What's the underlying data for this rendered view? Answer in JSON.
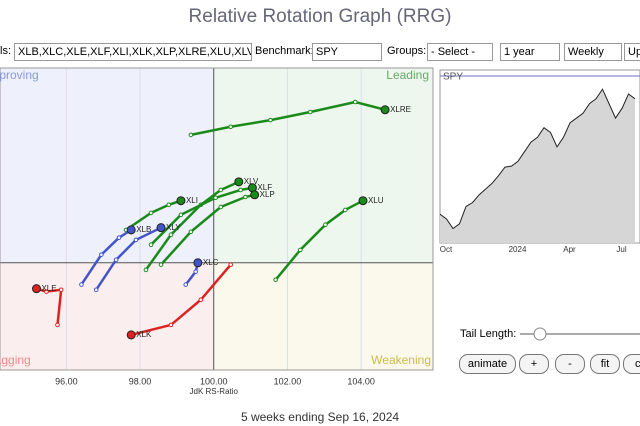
{
  "header": {
    "title": "Relative Rotation Graph (RRG)"
  },
  "controls": {
    "symbols_label": "ls:",
    "symbols": "XLB,XLC,XLE,XLF,XLI,XLK,XLP,XLRE,XLU,XLV,XL",
    "benchmark_label": "Benchmark:",
    "benchmark": "SPY",
    "groups_label": "Groups:",
    "groups": "- Select -",
    "period": "1 year",
    "interval": "Weekly",
    "update": "Up"
  },
  "rrg": {
    "x_label": "JdK RS-Ratio",
    "xlim": [
      94.2,
      105.95
    ],
    "ylim": [
      97.1,
      105.27
    ],
    "xticks": [
      {
        "value": 96,
        "label": "96.00"
      },
      {
        "value": 98,
        "label": "98.00"
      },
      {
        "value": 100,
        "label": "100.00"
      },
      {
        "value": 102,
        "label": "102.00"
      },
      {
        "value": 104,
        "label": "104.00"
      }
    ],
    "center": 100,
    "quadrants": {
      "improving": "Improving",
      "leading": "Leading",
      "weakening": "Weakening",
      "lagging": "Lagging"
    },
    "tails": [
      {
        "name": "XLRE",
        "color": "#1a8a1a",
        "x": [
          99.38,
          100.46,
          101.54,
          102.62,
          103.84,
          104.65
        ],
        "y": [
          103.46,
          103.68,
          103.86,
          104.08,
          104.35,
          104.14
        ]
      },
      {
        "name": "XLU",
        "color": "#1a8a1a",
        "x": [
          101.68,
          102.35,
          103.03,
          103.57,
          104.05
        ],
        "y": [
          99.54,
          100.35,
          101.03,
          101.43,
          101.68
        ]
      },
      {
        "name": "XLV",
        "color": "#1a8a1a",
        "x": [
          98.16,
          98.84,
          99.65,
          100.19,
          100.68
        ],
        "y": [
          99.81,
          100.76,
          101.57,
          101.97,
          102.19
        ]
      },
      {
        "name": "XLF",
        "color": "#1a8a1a",
        "x": [
          98.3,
          99.11,
          100.05,
          100.73,
          101.05
        ],
        "y": [
          100.49,
          101.3,
          101.76,
          101.97,
          102.03
        ]
      },
      {
        "name": "XLP",
        "color": "#1a8a1a",
        "x": [
          98.57,
          99.38,
          100.19,
          100.86,
          101.11
        ],
        "y": [
          99.95,
          100.84,
          101.51,
          101.78,
          101.84
        ]
      },
      {
        "name": "XLI",
        "color": "#1a8a1a",
        "x": [
          97.62,
          98.3,
          98.78,
          99.11
        ],
        "y": [
          100.89,
          101.35,
          101.57,
          101.68
        ]
      },
      {
        "name": "XLB",
        "color": "#4455cc",
        "x": [
          96.41,
          96.95,
          97.43,
          97.76
        ],
        "y": [
          99.41,
          100.22,
          100.68,
          100.89
        ]
      },
      {
        "name": "XLY",
        "color": "#4455cc",
        "x": [
          96.81,
          97.35,
          97.89,
          98.57
        ],
        "y": [
          99.27,
          100.08,
          100.62,
          100.95
        ]
      },
      {
        "name": "XLC",
        "color": "#4455cc",
        "x": [
          99.24,
          99.51,
          99.57
        ],
        "y": [
          99.41,
          99.76,
          100
        ]
      },
      {
        "name": "XLE",
        "color": "#dd2222",
        "x": [
          95.76,
          95.86,
          95.46,
          95.19
        ],
        "y": [
          98.32,
          99.27,
          99.22,
          99.3
        ]
      },
      {
        "name": "XLK",
        "color": "#dd2222",
        "x": [
          100.46,
          99.65,
          98.84,
          97.76
        ],
        "y": [
          99.95,
          99.0,
          98.32,
          98.05
        ]
      }
    ]
  },
  "benchmark_chart": {
    "title": "SPY",
    "ylim": [
      4000,
      5800
    ],
    "values": [
      4300,
      4250,
      4150,
      4200,
      4380,
      4420,
      4500,
      4560,
      4620,
      4700,
      4790,
      4800,
      4850,
      4950,
      5050,
      5100,
      5200,
      5150,
      5000,
      5100,
      5250,
      5300,
      5350,
      5450,
      5500,
      5600,
      5450,
      5300,
      5400,
      5550,
      5500
    ],
    "xticks": [
      {
        "index": 0,
        "label": "Oct"
      },
      {
        "index": 11,
        "label": "2024"
      },
      {
        "index": 19,
        "label": "Apr"
      },
      {
        "index": 27,
        "label": "Jul"
      }
    ]
  },
  "tail_controls": {
    "label": "Tail Length:",
    "buttons": [
      "animate",
      "+",
      "-",
      "fit",
      "cl"
    ]
  },
  "footer": "5 weeks ending Sep 16, 2024"
}
